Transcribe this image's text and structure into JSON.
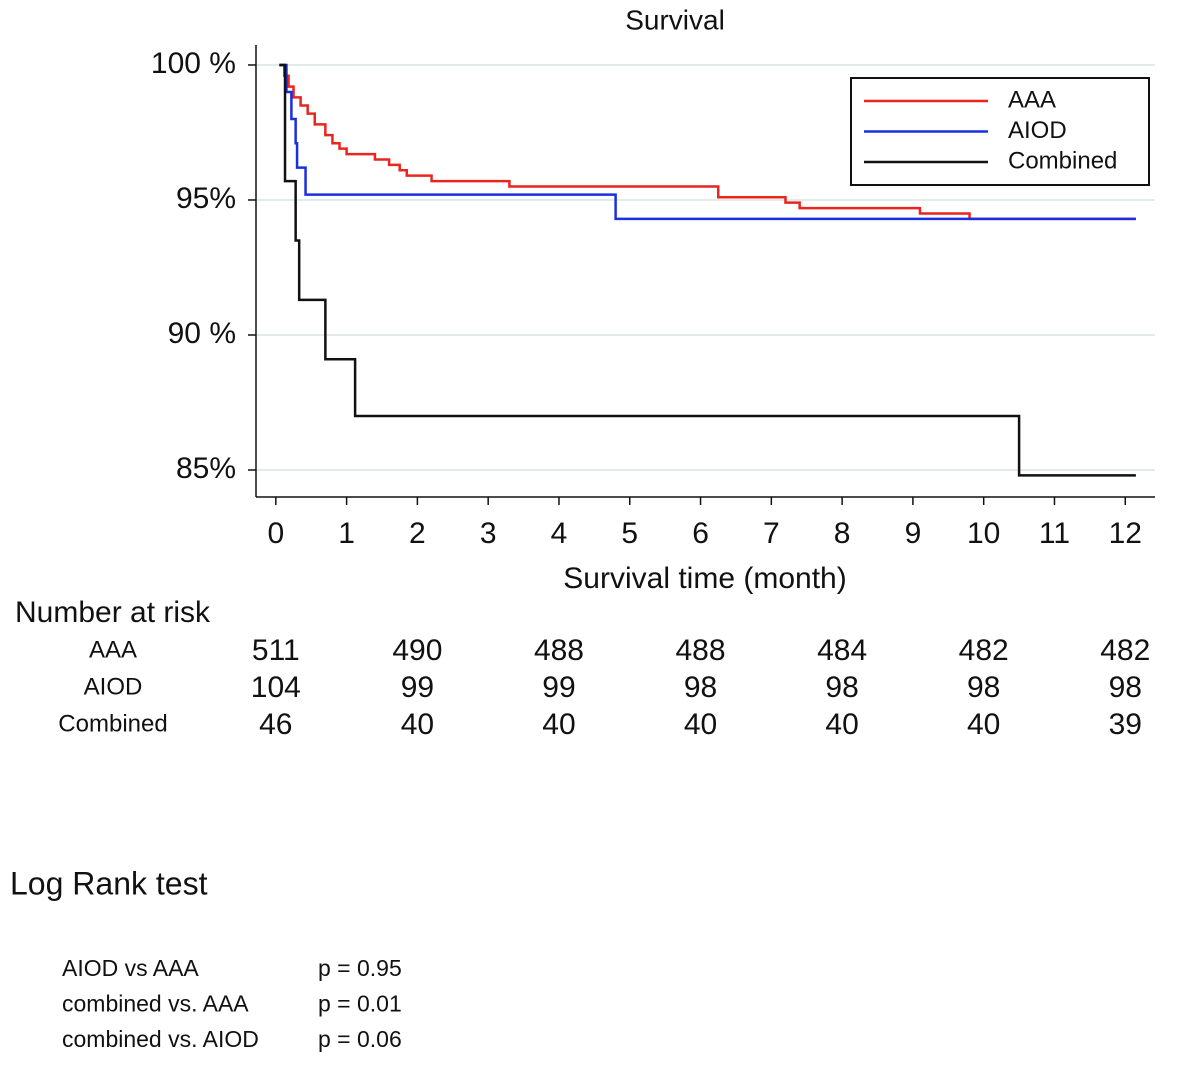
{
  "chart_data": {
    "type": "line",
    "step": true,
    "title": "Survival",
    "x_label": "Survival time (month)",
    "xlim": [
      -0.28,
      12.42
    ],
    "xticks": [
      0,
      1,
      2,
      3,
      4,
      5,
      6,
      7,
      8,
      9,
      10,
      11,
      12
    ],
    "ylim": [
      84,
      100.74
    ],
    "yticks": [
      {
        "value": 100,
        "label": "100 %"
      },
      {
        "value": 95,
        "label": "95%"
      },
      {
        "value": 90,
        "label": "90 %"
      },
      {
        "value": 85,
        "label": "85%"
      }
    ],
    "grid": true,
    "legend": "top-right",
    "series": [
      {
        "name": "AAA",
        "color": "#e8251e",
        "x": [
          0.05,
          0.12,
          0.12,
          0.18,
          0.18,
          0.25,
          0.25,
          0.35,
          0.35,
          0.45,
          0.45,
          0.55,
          0.55,
          0.7,
          0.7,
          0.8,
          0.8,
          0.9,
          0.9,
          1.0,
          1.0,
          1.4,
          1.4,
          1.6,
          1.6,
          1.75,
          1.75,
          1.85,
          1.85,
          2.2,
          2.2,
          3.3,
          3.3,
          6.25,
          6.25,
          7.2,
          7.2,
          7.4,
          7.4,
          9.1,
          9.1,
          9.8,
          9.8,
          12.15
        ],
        "values": [
          100,
          100,
          99.6,
          99.6,
          99.2,
          99.2,
          98.8,
          98.8,
          98.5,
          98.5,
          98.2,
          98.2,
          97.8,
          97.8,
          97.4,
          97.4,
          97.1,
          97.1,
          96.9,
          96.9,
          96.7,
          96.7,
          96.5,
          96.5,
          96.3,
          96.3,
          96.1,
          96.1,
          95.9,
          95.9,
          95.7,
          95.7,
          95.5,
          95.5,
          95.1,
          95.1,
          94.9,
          94.9,
          94.7,
          94.7,
          94.5,
          94.5,
          94.3,
          94.3
        ]
      },
      {
        "name": "AIOD",
        "color": "#1a2fe0",
        "x": [
          0.05,
          0.15,
          0.15,
          0.22,
          0.22,
          0.28,
          0.28,
          0.3,
          0.3,
          0.42,
          0.42,
          4.8,
          4.8,
          12.15
        ],
        "values": [
          100,
          100,
          99.0,
          99.0,
          98.0,
          98.0,
          97.1,
          97.1,
          96.2,
          96.2,
          95.2,
          95.2,
          94.3,
          94.3
        ]
      },
      {
        "name": "Combined",
        "color": "#111111",
        "x": [
          0.05,
          0.13,
          0.13,
          0.28,
          0.28,
          0.33,
          0.33,
          0.7,
          0.7,
          1.12,
          1.12,
          10.5,
          10.5,
          12.15
        ],
        "values": [
          100,
          100,
          95.7,
          95.7,
          93.5,
          93.5,
          91.3,
          91.3,
          89.1,
          89.1,
          87.0,
          87.0,
          84.8,
          84.8
        ]
      }
    ]
  },
  "risk_table": {
    "title": "Number at risk",
    "rows": [
      {
        "name": "AAA",
        "values": [
          511,
          490,
          488,
          488,
          484,
          482,
          482
        ]
      },
      {
        "name": "AIOD",
        "values": [
          104,
          99,
          99,
          98,
          98,
          98,
          98
        ]
      },
      {
        "name": "Combined",
        "values": [
          46,
          40,
          40,
          40,
          40,
          40,
          39
        ]
      }
    ]
  },
  "log_rank_test": {
    "title": "Log Rank test",
    "rows": [
      {
        "comparison": "AIOD vs AAA",
        "p": "p = 0.95"
      },
      {
        "comparison": "combined vs. AAA",
        "p": "p = 0.01"
      },
      {
        "comparison": "combined vs. AIOD",
        "p": "p = 0.06"
      }
    ]
  }
}
